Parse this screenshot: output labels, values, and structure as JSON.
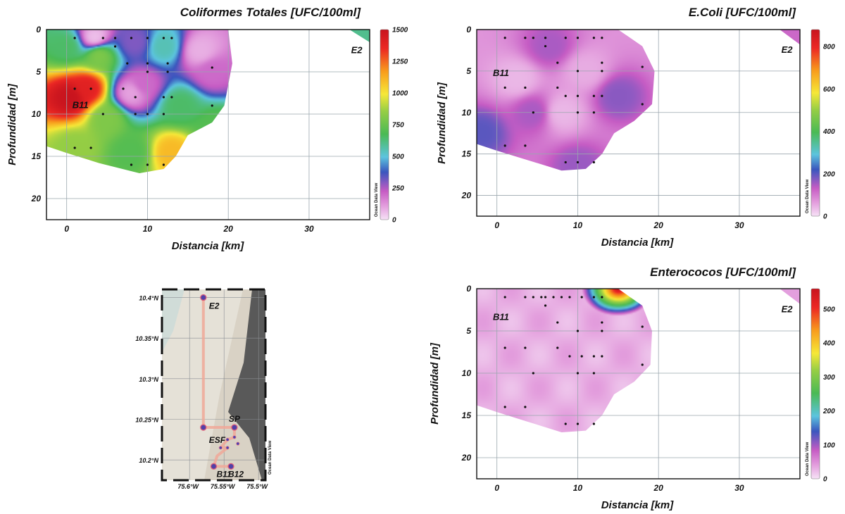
{
  "chart_data": [
    {
      "type": "heatmap",
      "id": "coliformes",
      "title": "Coliformes Totales [UFC/100ml]",
      "xlabel": "Distancia [km]",
      "ylabel": "Profundidad [m]",
      "xlim": [
        -2.5,
        37.5
      ],
      "ylim": [
        22.5,
        0
      ],
      "xticks": [
        0,
        10,
        20,
        30
      ],
      "yticks": [
        0,
        5,
        10,
        15,
        20
      ],
      "grid": true,
      "colorbar_ticks": [
        0,
        250,
        500,
        750,
        1000,
        1250,
        1500
      ],
      "colorbar_range": [
        0,
        1500
      ],
      "colorbar_label": "Ocean Data View",
      "station_labels": [
        {
          "text": "B11",
          "x": 0.7,
          "y": 9.3
        },
        {
          "text": "E2",
          "x": 35.2,
          "y": 2.8
        }
      ],
      "sample_points": [
        [
          1,
          1
        ],
        [
          4.5,
          1
        ],
        [
          6,
          1
        ],
        [
          8,
          1
        ],
        [
          10,
          1
        ],
        [
          12,
          1
        ],
        [
          13,
          1
        ],
        [
          6,
          2
        ],
        [
          7.5,
          4
        ],
        [
          10,
          4
        ],
        [
          12.5,
          4
        ],
        [
          18,
          4.5
        ],
        [
          10,
          5
        ],
        [
          12.5,
          5
        ],
        [
          1,
          7
        ],
        [
          3,
          7
        ],
        [
          7,
          7
        ],
        [
          8.5,
          8
        ],
        [
          12,
          8
        ],
        [
          13,
          8
        ],
        [
          18,
          9
        ],
        [
          4.5,
          10
        ],
        [
          8.5,
          10
        ],
        [
          10,
          10
        ],
        [
          12,
          10
        ],
        [
          1,
          14
        ],
        [
          3,
          14
        ],
        [
          8,
          16
        ],
        [
          10,
          16
        ],
        [
          12,
          16
        ]
      ],
      "blobs": [
        {
          "x": 0.5,
          "y": 8.0,
          "value": 1500
        },
        {
          "x": 2.5,
          "y": 7.0,
          "value": 1400
        },
        {
          "x": 13.0,
          "y": 14.5,
          "value": 1100
        },
        {
          "x": 3.5,
          "y": 1.0,
          "value": 50
        },
        {
          "x": 8.5,
          "y": 1.5,
          "value": 300
        },
        {
          "x": 8.0,
          "y": 7.5,
          "value": 100
        },
        {
          "x": 9.5,
          "y": 6.5,
          "value": 200
        },
        {
          "x": 16.5,
          "y": 2.5,
          "value": 80
        },
        {
          "x": 18.0,
          "y": 5.0,
          "value": 200
        },
        {
          "x": 12.0,
          "y": 2.0,
          "value": 550
        },
        {
          "x": 0.0,
          "y": 2.0,
          "value": 650
        },
        {
          "x": 4.0,
          "y": 3.0,
          "value": 800
        },
        {
          "x": 5.0,
          "y": 10.5,
          "value": 800
        },
        {
          "x": 1.0,
          "y": 14.0,
          "value": 850
        },
        {
          "x": 8.0,
          "y": 14.5,
          "value": 700
        },
        {
          "x": 14.0,
          "y": 9.0,
          "value": 650
        },
        {
          "x": 18.5,
          "y": 11.5,
          "value": 700
        }
      ],
      "outline": [
        [
          -2.5,
          0
        ],
        [
          20,
          0
        ],
        [
          20.5,
          4
        ],
        [
          19.5,
          9
        ],
        [
          18,
          11
        ],
        [
          15,
          12.5
        ],
        [
          13.5,
          15
        ],
        [
          12,
          16.5
        ],
        [
          9,
          17
        ],
        [
          4,
          15.8
        ],
        [
          0,
          14.6
        ],
        [
          -2.5,
          13.8
        ]
      ],
      "corner_patch": {
        "text_station": "E2",
        "outline": [
          [
            35,
            0
          ],
          [
            37.5,
            0
          ],
          [
            37.5,
            1.5
          ]
        ],
        "value": 600
      }
    },
    {
      "type": "heatmap",
      "id": "ecoli",
      "title": "E.Coli [UFC/100ml]",
      "xlabel": "Distancia [km]",
      "ylabel": "Profundidad [m]",
      "xlim": [
        -2.5,
        37.5
      ],
      "ylim": [
        22.5,
        0
      ],
      "xticks": [
        0,
        10,
        20,
        30
      ],
      "yticks": [
        0,
        5,
        10,
        15,
        20
      ],
      "grid": true,
      "colorbar_ticks": [
        0,
        200,
        400,
        600,
        800
      ],
      "colorbar_range": [
        0,
        880
      ],
      "colorbar_label": "Ocean Data View",
      "station_labels": [
        {
          "text": "B11",
          "x": -0.5,
          "y": 5.6
        },
        {
          "text": "E2",
          "x": 35.2,
          "y": 2.8
        }
      ],
      "sample_points": [
        [
          1,
          1
        ],
        [
          3.5,
          1
        ],
        [
          4.5,
          1
        ],
        [
          6,
          1
        ],
        [
          8.5,
          1
        ],
        [
          10,
          1
        ],
        [
          12,
          1
        ],
        [
          13,
          1
        ],
        [
          6,
          2
        ],
        [
          7.5,
          4
        ],
        [
          13,
          4
        ],
        [
          18,
          4.5
        ],
        [
          10,
          5
        ],
        [
          13,
          5
        ],
        [
          1,
          7
        ],
        [
          3.5,
          7
        ],
        [
          7.5,
          7
        ],
        [
          8.5,
          8
        ],
        [
          10,
          8
        ],
        [
          12,
          8
        ],
        [
          13,
          8
        ],
        [
          18,
          9
        ],
        [
          4.5,
          10
        ],
        [
          10,
          10
        ],
        [
          12,
          10
        ],
        [
          1,
          14
        ],
        [
          3.5,
          14
        ],
        [
          8.5,
          16
        ],
        [
          10,
          16
        ],
        [
          12,
          16
        ]
      ],
      "blobs": [
        {
          "x": 6.5,
          "y": 2.0,
          "value": 150
        },
        {
          "x": 10.0,
          "y": 16.5,
          "value": 160
        },
        {
          "x": 15.0,
          "y": 8.0,
          "value": 170
        },
        {
          "x": -2.0,
          "y": 12.5,
          "value": 200
        },
        {
          "x": 4.5,
          "y": 10.0,
          "value": 150
        },
        {
          "x": 2.5,
          "y": 6.0,
          "value": 40
        },
        {
          "x": 8.0,
          "y": 10.0,
          "value": 40
        },
        {
          "x": 11.0,
          "y": 5.0,
          "value": 50
        }
      ],
      "background_value": 70,
      "outline": [
        [
          -2.5,
          0
        ],
        [
          15,
          0
        ],
        [
          18,
          2
        ],
        [
          19.5,
          5
        ],
        [
          19.2,
          9
        ],
        [
          17,
          11
        ],
        [
          14.5,
          12.5
        ],
        [
          13,
          15
        ],
        [
          11,
          16.8
        ],
        [
          8,
          17
        ],
        [
          4,
          15.8
        ],
        [
          0,
          14.6
        ],
        [
          -2.5,
          13.8
        ]
      ],
      "corner_patch": {
        "text_station": "E2",
        "outline": [
          [
            35,
            0
          ],
          [
            37.5,
            0
          ],
          [
            37.5,
            1.8
          ]
        ],
        "value": 120
      }
    },
    {
      "type": "heatmap",
      "id": "enterococos",
      "title": "Enterococos [UFC/100ml]",
      "xlabel": "Distancia [km]",
      "ylabel": "Profundidad [m]",
      "xlim": [
        -2.5,
        37.5
      ],
      "ylim": [
        22.5,
        0
      ],
      "xticks": [
        0,
        10,
        20,
        30
      ],
      "yticks": [
        0,
        5,
        10,
        15,
        20
      ],
      "grid": true,
      "colorbar_ticks": [
        0,
        100,
        200,
        300,
        400,
        500
      ],
      "colorbar_range": [
        0,
        560
      ],
      "colorbar_label": "Ocean Data View",
      "station_labels": [
        {
          "text": "B11",
          "x": -0.5,
          "y": 3.7
        },
        {
          "text": "E2",
          "x": 35.2,
          "y": 2.8
        }
      ],
      "sample_points": [
        [
          1,
          1
        ],
        [
          3.5,
          1
        ],
        [
          4.5,
          1
        ],
        [
          5.5,
          1
        ],
        [
          6,
          1
        ],
        [
          7,
          1
        ],
        [
          8,
          1
        ],
        [
          9,
          1
        ],
        [
          10.5,
          1
        ],
        [
          12,
          1
        ],
        [
          13,
          1
        ],
        [
          6,
          2
        ],
        [
          7.5,
          4
        ],
        [
          13,
          4
        ],
        [
          18,
          4.5
        ],
        [
          10,
          5
        ],
        [
          13,
          5
        ],
        [
          1,
          7
        ],
        [
          3.5,
          7
        ],
        [
          7.5,
          7
        ],
        [
          9,
          8
        ],
        [
          10.5,
          8
        ],
        [
          12,
          8
        ],
        [
          13,
          8
        ],
        [
          18,
          9
        ],
        [
          4.5,
          10
        ],
        [
          10,
          10
        ],
        [
          12,
          10
        ],
        [
          1,
          14
        ],
        [
          3.5,
          14
        ],
        [
          8.5,
          16
        ],
        [
          10,
          16
        ],
        [
          12,
          16
        ]
      ],
      "hotspot": {
        "x": 15.0,
        "y": 0,
        "peak": 560,
        "falloff_km": 4.5
      },
      "background_value": 30,
      "outline": [
        [
          -2.5,
          0
        ],
        [
          15,
          0
        ],
        [
          18,
          2
        ],
        [
          19.2,
          5
        ],
        [
          19,
          9
        ],
        [
          17,
          11
        ],
        [
          14.5,
          12.5
        ],
        [
          13,
          15
        ],
        [
          11,
          16.8
        ],
        [
          8,
          17
        ],
        [
          4,
          15.8
        ],
        [
          0,
          14.6
        ],
        [
          -2.5,
          13.8
        ]
      ],
      "corner_patch": {
        "text_station": "E2",
        "outline": [
          [
            35,
            0
          ],
          [
            37.5,
            0
          ],
          [
            37.5,
            1.8
          ]
        ],
        "value": 40
      }
    },
    {
      "type": "map",
      "id": "map",
      "xlabels": [
        "75.6°W",
        "75.55°W",
        "75.5°W"
      ],
      "xvalues": [
        -75.6,
        -75.55,
        -75.5
      ],
      "ylabels": [
        "10.4°N",
        "10.35°N",
        "10.3°N",
        "10.25°N",
        "10.2°N"
      ],
      "yvalues": [
        10.4,
        10.35,
        10.3,
        10.25,
        10.2
      ],
      "lon_range": [
        -75.64,
        -75.49
      ],
      "lat_range": [
        10.175,
        10.41
      ],
      "stations": [
        {
          "name": "E2",
          "lon": -75.58,
          "lat": 10.4
        },
        {
          "name": "ESF",
          "lon": -75.58,
          "lat": 10.24
        },
        {
          "name": "SP",
          "lon": -75.535,
          "lat": 10.24
        },
        {
          "name": "B11",
          "lon": -75.565,
          "lat": 10.192
        },
        {
          "name": "B12",
          "lon": -75.54,
          "lat": 10.192
        }
      ],
      "small_stations": [
        [
          -75.545,
          10.225
        ],
        [
          -75.555,
          10.215
        ],
        [
          -75.545,
          10.215
        ],
        [
          -75.535,
          10.228
        ],
        [
          -75.53,
          10.22
        ]
      ],
      "track": [
        [
          -75.58,
          10.4
        ],
        [
          -75.58,
          10.24
        ],
        [
          -75.535,
          10.24
        ],
        [
          -75.535,
          10.228
        ],
        [
          -75.545,
          10.225
        ],
        [
          -75.555,
          10.215
        ],
        [
          -75.545,
          10.215
        ],
        [
          -75.56,
          10.205
        ],
        [
          -75.565,
          10.192
        ],
        [
          -75.54,
          10.192
        ]
      ],
      "colors": {
        "sea": "#d9d2c5",
        "land": "#595959",
        "shallow": "#e6e2d8",
        "track": "#f0a898"
      },
      "odv_label": "Ocean Data View"
    }
  ]
}
